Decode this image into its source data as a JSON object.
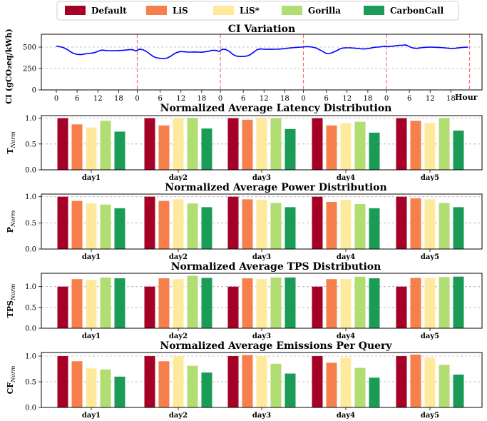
{
  "colors": {
    "Default": "#a50026",
    "LiS": "#f67f4b",
    "LiS*": "#fee99d",
    "Gorilla": "#b2dd72",
    "CarbonCall": "#1a9c57",
    "ci_line": "#0000ff",
    "day_divider": "#ff6b6b",
    "grid": "#b0b0b0"
  },
  "legend": [
    "Default",
    "LiS",
    "LiS*",
    "Gorilla",
    "CarbonCall"
  ],
  "chart_data": [
    {
      "type": "line",
      "title": "CI Variation",
      "ylabel": "CI (gCO₂eq/kWh)",
      "xlabel": "Hour",
      "ylim": [
        0,
        650
      ],
      "yticks": [
        0,
        250,
        500
      ],
      "xtick_labels": [
        "0",
        "6",
        "12",
        "18",
        "0",
        "6",
        "12",
        "18",
        "0",
        "6",
        "12",
        "18",
        "0",
        "6",
        "12",
        "18",
        "0",
        "6",
        "12",
        "18"
      ],
      "grid": "horizontal dashed",
      "series": [
        {
          "x": [
            0,
            1,
            2,
            3,
            4,
            5,
            6,
            7,
            8,
            9,
            10,
            11,
            12,
            13,
            14,
            15,
            16,
            17,
            18,
            19,
            20,
            21,
            22,
            23,
            24,
            25,
            26,
            27,
            28,
            29,
            30,
            31,
            32,
            33,
            34,
            35,
            36,
            37,
            38,
            39,
            40,
            41,
            42,
            43,
            44,
            45,
            46,
            47,
            48,
            49,
            50,
            51,
            52,
            53,
            54,
            55,
            56,
            57,
            58,
            59,
            60,
            61,
            62,
            63,
            64,
            65,
            66,
            67,
            68,
            69,
            70,
            71,
            72,
            73,
            74,
            75,
            76,
            77,
            78,
            79,
            80,
            81,
            82,
            83,
            84,
            85,
            86,
            87,
            88,
            89,
            90,
            91,
            92,
            93,
            94,
            95,
            96,
            97,
            98,
            99,
            100,
            101,
            102,
            103,
            104,
            105,
            106,
            107,
            108,
            109,
            110,
            111,
            112,
            113,
            114,
            115,
            116,
            117,
            118,
            119
          ],
          "values": [
            510,
            505,
            495,
            475,
            448,
            425,
            415,
            412,
            418,
            425,
            428,
            435,
            450,
            465,
            462,
            458,
            457,
            458,
            460,
            462,
            465,
            470,
            470,
            455,
            475,
            470,
            450,
            420,
            390,
            375,
            368,
            365,
            372,
            392,
            420,
            440,
            448,
            445,
            442,
            442,
            443,
            442,
            440,
            445,
            452,
            462,
            462,
            450,
            475,
            472,
            450,
            415,
            395,
            390,
            390,
            395,
            410,
            440,
            470,
            478,
            475,
            474,
            474,
            475,
            476,
            478,
            482,
            488,
            492,
            495,
            498,
            500,
            505,
            505,
            500,
            490,
            470,
            448,
            425,
            425,
            440,
            458,
            480,
            490,
            492,
            492,
            488,
            485,
            480,
            478,
            482,
            490,
            498,
            500,
            505,
            510,
            505,
            510,
            515,
            520,
            522,
            525,
            505,
            490,
            485,
            490,
            495,
            498,
            500,
            498,
            497,
            495,
            492,
            488,
            483,
            485,
            490,
            495,
            498,
            500
          ]
        }
      ]
    },
    {
      "type": "bar",
      "title": "Normalized Average Latency Distribution",
      "ylabel_main": "T",
      "ylabel_sub": "Norm",
      "ylim": [
        0,
        1.05
      ],
      "yticks": [
        "0.0",
        "0.5",
        "1.0"
      ],
      "categories": [
        "day1",
        "day2",
        "day3",
        "day4",
        "day5"
      ],
      "series": [
        {
          "name": "Default",
          "values": [
            1.0,
            1.0,
            1.0,
            1.0,
            1.0
          ]
        },
        {
          "name": "LiS",
          "values": [
            0.88,
            0.86,
            0.97,
            0.86,
            0.95
          ]
        },
        {
          "name": "LiS*",
          "values": [
            0.82,
            1.0,
            1.0,
            0.9,
            0.91
          ]
        },
        {
          "name": "Gorilla",
          "values": [
            0.95,
            1.0,
            1.0,
            0.93,
            1.0
          ]
        },
        {
          "name": "CarbonCall",
          "values": [
            0.74,
            0.8,
            0.79,
            0.72,
            0.76
          ]
        }
      ]
    },
    {
      "type": "bar",
      "title": "Normalized Average Power Distribution",
      "ylabel_main": "P",
      "ylabel_sub": "Norm",
      "ylim": [
        0,
        1.05
      ],
      "yticks": [
        "0.0",
        "0.5",
        "1.0"
      ],
      "categories": [
        "day1",
        "day2",
        "day3",
        "day4",
        "day5"
      ],
      "series": [
        {
          "name": "Default",
          "values": [
            1.0,
            1.0,
            1.0,
            1.0,
            1.0
          ]
        },
        {
          "name": "LiS",
          "values": [
            0.92,
            0.92,
            0.95,
            0.9,
            0.97
          ]
        },
        {
          "name": "LiS*",
          "values": [
            0.87,
            0.95,
            0.94,
            0.94,
            0.95
          ]
        },
        {
          "name": "Gorilla",
          "values": [
            0.85,
            0.87,
            0.88,
            0.86,
            0.88
          ]
        },
        {
          "name": "CarbonCall",
          "values": [
            0.78,
            0.8,
            0.8,
            0.78,
            0.8
          ]
        }
      ]
    },
    {
      "type": "bar",
      "title": "Normalized Average TPS Distribution",
      "ylabel_main": "TPS",
      "ylabel_sub": "Norm",
      "ylim": [
        0,
        1.32
      ],
      "yticks": [
        "0.0",
        "0.5",
        "1.0"
      ],
      "categories": [
        "day1",
        "day2",
        "day3",
        "day4",
        "day5"
      ],
      "series": [
        {
          "name": "Default",
          "values": [
            1.0,
            1.0,
            1.0,
            1.0,
            1.0
          ]
        },
        {
          "name": "LiS",
          "values": [
            1.18,
            1.2,
            1.2,
            1.18,
            1.21
          ]
        },
        {
          "name": "LiS*",
          "values": [
            1.16,
            1.18,
            1.18,
            1.18,
            1.21
          ]
        },
        {
          "name": "Gorilla",
          "values": [
            1.22,
            1.26,
            1.22,
            1.24,
            1.23
          ]
        },
        {
          "name": "CarbonCall",
          "values": [
            1.2,
            1.21,
            1.22,
            1.2,
            1.24
          ]
        }
      ]
    },
    {
      "type": "bar",
      "title": "Normalized Average Emissions Per Query",
      "ylabel_main": "CF",
      "ylabel_sub": "Norm",
      "ylim": [
        0,
        1.07
      ],
      "yticks": [
        "0.0",
        "0.5",
        "1.0"
      ],
      "categories": [
        "day1",
        "day2",
        "day3",
        "day4",
        "day5"
      ],
      "series": [
        {
          "name": "Default",
          "values": [
            1.0,
            1.0,
            1.0,
            1.0,
            1.0
          ]
        },
        {
          "name": "LiS",
          "values": [
            0.9,
            0.9,
            1.02,
            0.87,
            1.03
          ]
        },
        {
          "name": "LiS*",
          "values": [
            0.76,
            1.0,
            1.0,
            0.97,
            0.97
          ]
        },
        {
          "name": "Gorilla",
          "values": [
            0.74,
            0.81,
            0.85,
            0.77,
            0.83
          ]
        },
        {
          "name": "CarbonCall",
          "values": [
            0.6,
            0.68,
            0.66,
            0.58,
            0.64
          ]
        }
      ]
    }
  ]
}
